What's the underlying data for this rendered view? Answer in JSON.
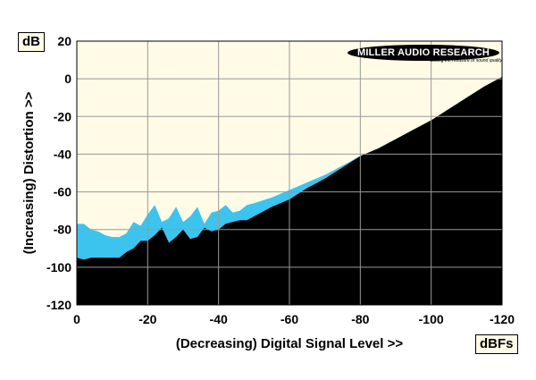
{
  "chart_data": {
    "type": "area",
    "title": "",
    "xlabel": "(Decreasing) Digital Signal Level >>",
    "ylabel": "(Increasing) Distortion >>",
    "x_unit": "dBFs",
    "y_unit": "dB",
    "xlim": [
      0,
      -120
    ],
    "ylim": [
      -120,
      20
    ],
    "x_ticks": [
      0,
      -20,
      -40,
      -60,
      -80,
      -100,
      -120
    ],
    "x_tick_labels": [
      "0",
      "-20",
      "-40",
      "-60",
      "-80",
      "-100",
      "-120"
    ],
    "y_ticks": [
      20,
      0,
      -20,
      -40,
      -60,
      -80,
      -100,
      -120
    ],
    "y_tick_labels": [
      "20",
      "0",
      "-20",
      "-40",
      "-60",
      "-80",
      "-100",
      "-120"
    ],
    "grid": true,
    "series": [
      {
        "x": [
          0,
          -2,
          -4,
          -6,
          -8,
          -10,
          -12,
          -14,
          -16,
          -18,
          -20,
          -22,
          -24,
          -26,
          -28,
          -30,
          -32,
          -34,
          -36,
          -38,
          -40,
          -42,
          -44,
          -46,
          -48,
          -50,
          -55,
          -60,
          -65,
          -70,
          -75,
          -80,
          -85,
          -90,
          -95,
          -100,
          -105,
          -110,
          -115,
          -120
        ],
        "values": [
          -77,
          -77,
          -80,
          -81,
          -83,
          -84,
          -84,
          -82,
          -76,
          -78,
          -72,
          -67,
          -76,
          -74,
          -68,
          -76,
          -73,
          -68,
          -77,
          -71,
          -70,
          -67,
          -71,
          -70,
          -67,
          -66,
          -63,
          -59,
          -55,
          -51,
          -46,
          -41,
          -37,
          -32,
          -27,
          -22,
          -16,
          -10,
          -4,
          1
        ]
      },
      {
        "x": [
          0,
          -2,
          -4,
          -6,
          -8,
          -10,
          -12,
          -14,
          -16,
          -18,
          -20,
          -22,
          -24,
          -26,
          -28,
          -30,
          -32,
          -34,
          -36,
          -38,
          -40,
          -42,
          -44,
          -46,
          -48,
          -50,
          -55,
          -60,
          -65,
          -70,
          -75,
          -80,
          -85,
          -90,
          -95,
          -100,
          -105,
          -110,
          -115,
          -120
        ],
        "values": [
          -95,
          -96,
          -95,
          -95,
          -95,
          -95,
          -95,
          -92,
          -90,
          -86,
          -86,
          -83,
          -79,
          -87,
          -84,
          -80,
          -85,
          -84,
          -79,
          -81,
          -80,
          -77,
          -76,
          -75,
          -75,
          -73,
          -68,
          -64,
          -58,
          -53,
          -47,
          -41,
          -37,
          -32,
          -27,
          -22,
          -16,
          -10,
          -4,
          1
        ]
      }
    ],
    "colors": {
      "plot_background": "#fffbe6",
      "upper_band": "#3cc4ee",
      "floor": "#000000",
      "grid": "#999999"
    },
    "logo_text": "MILLER AUDIO RESEARCH",
    "logo_tagline": "Setting the measure of sound quality"
  }
}
